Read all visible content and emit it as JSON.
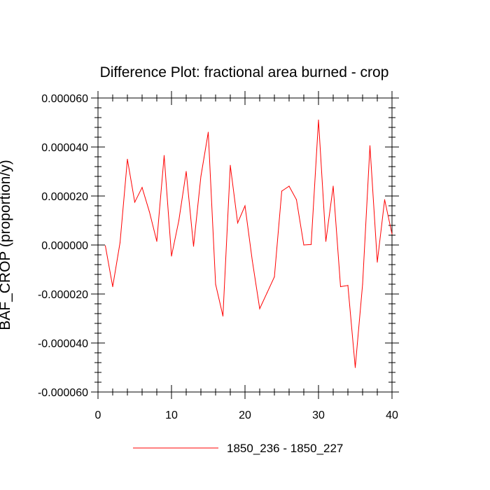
{
  "chart_data": {
    "type": "line",
    "title": "Difference Plot: fractional area burned - crop",
    "xlabel": "",
    "ylabel": "BAF_CROP  (proportion/y)",
    "xlim": [
      0,
      40
    ],
    "ylim": [
      -6e-05,
      6e-05
    ],
    "x_ticks": [
      "0",
      "10",
      "20",
      "30",
      "40"
    ],
    "y_ticks": [
      "-0.000060",
      "-0.000040",
      "-0.000020",
      "0.000000",
      "0.000020",
      "0.000040",
      "0.000060"
    ],
    "grid": false,
    "legend_position": "bottom-center",
    "series": [
      {
        "name": "1850_236 - 1850_227",
        "color": "#ff0000",
        "x": [
          1,
          2,
          3,
          4,
          5,
          6,
          7,
          8,
          9,
          10,
          11,
          12,
          13,
          14,
          15,
          16,
          17,
          18,
          19,
          20,
          21,
          22,
          23,
          24,
          25,
          26,
          27,
          28,
          29,
          30,
          31,
          32,
          33,
          34,
          35,
          36,
          37,
          38,
          39,
          40
        ],
        "values": [
          -3e-07,
          -1.7e-05,
          1e-06,
          3.5e-05,
          1.75e-05,
          2.35e-05,
          1.35e-05,
          1.5e-06,
          3.65e-05,
          -4.5e-06,
          1e-05,
          3e-05,
          -5e-07,
          2.8e-05,
          4.6e-05,
          -1.6e-05,
          -2.9e-05,
          3.25e-05,
          9e-06,
          1.6e-05,
          -6.5e-06,
          -2.6e-05,
          -1.95e-05,
          -1.3e-05,
          2.2e-05,
          2.4e-05,
          1.85e-05,
          0.0,
          2e-07,
          5.1e-05,
          1.5e-06,
          2.4e-05,
          -1.7e-05,
          -1.65e-05,
          -5e-05,
          -1.6e-05,
          4.05e-05,
          -7e-06,
          1.85e-05,
          4.5e-06
        ]
      }
    ]
  }
}
